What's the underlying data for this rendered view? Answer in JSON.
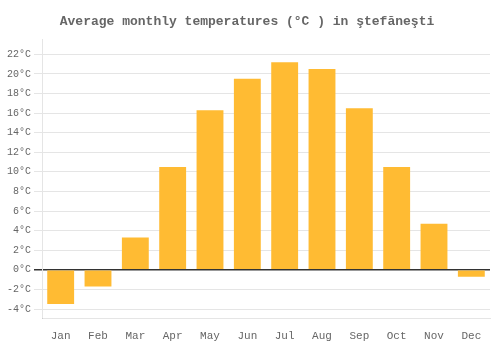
{
  "chart_data": {
    "type": "bar",
    "title": "Average monthly temperatures (°C ) in ştefăneşti",
    "categories": [
      "Jan",
      "Feb",
      "Mar",
      "Apr",
      "May",
      "Jun",
      "Jul",
      "Aug",
      "Sep",
      "Oct",
      "Nov",
      "Dec"
    ],
    "values": [
      -3.5,
      -1.7,
      3.3,
      10.5,
      16.3,
      19.5,
      21.2,
      20.5,
      16.5,
      10.5,
      4.7,
      -0.7
    ],
    "color": "#FFBB33",
    "ylim": [
      -5,
      23.5
    ],
    "yticks": [
      {
        "value": -4,
        "label": "-4°C"
      },
      {
        "value": -2,
        "label": "-2°C"
      },
      {
        "value": 0,
        "label": "0°C"
      },
      {
        "value": 2,
        "label": "2°C"
      },
      {
        "value": 4,
        "label": "4°C"
      },
      {
        "value": 6,
        "label": "6°C"
      },
      {
        "value": 8,
        "label": "8°C"
      },
      {
        "value": 10,
        "label": "10°C"
      },
      {
        "value": 12,
        "label": "12°C"
      },
      {
        "value": 14,
        "label": "14°C"
      },
      {
        "value": 16,
        "label": "16°C"
      },
      {
        "value": 18,
        "label": "18°C"
      },
      {
        "value": 20,
        "label": "20°C"
      },
      {
        "value": 22,
        "label": "22°C"
      }
    ],
    "grid": true
  }
}
